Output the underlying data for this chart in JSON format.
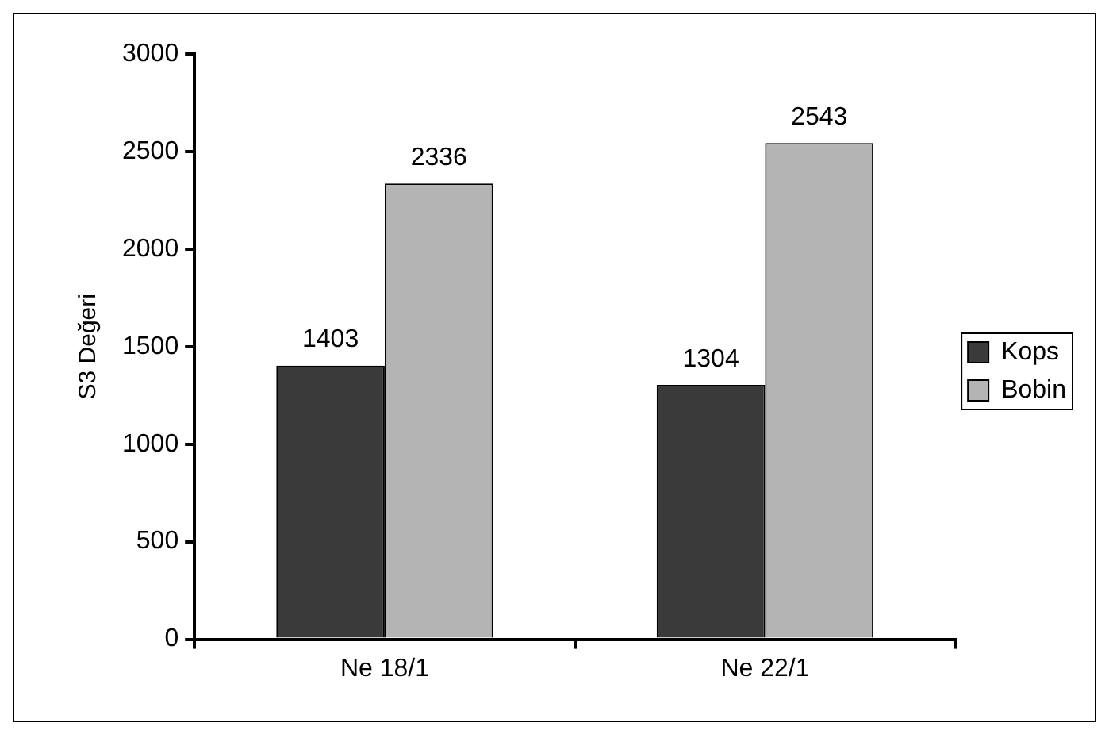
{
  "chart_data": {
    "type": "bar",
    "ylabel": "S3 Değeri",
    "categories": [
      "Ne 18/1",
      "Ne 22/1"
    ],
    "series": [
      {
        "name": "Kops",
        "color": "#3a3a3a",
        "values": [
          1403,
          1304
        ]
      },
      {
        "name": "Bobin",
        "color": "#b4b4b4",
        "values": [
          2336,
          2543
        ]
      }
    ],
    "ylim": [
      0,
      3000
    ],
    "yticks": [
      0,
      500,
      1000,
      1500,
      2000,
      2500,
      3000
    ],
    "grid": false,
    "legend": "right",
    "data_labels": true
  }
}
